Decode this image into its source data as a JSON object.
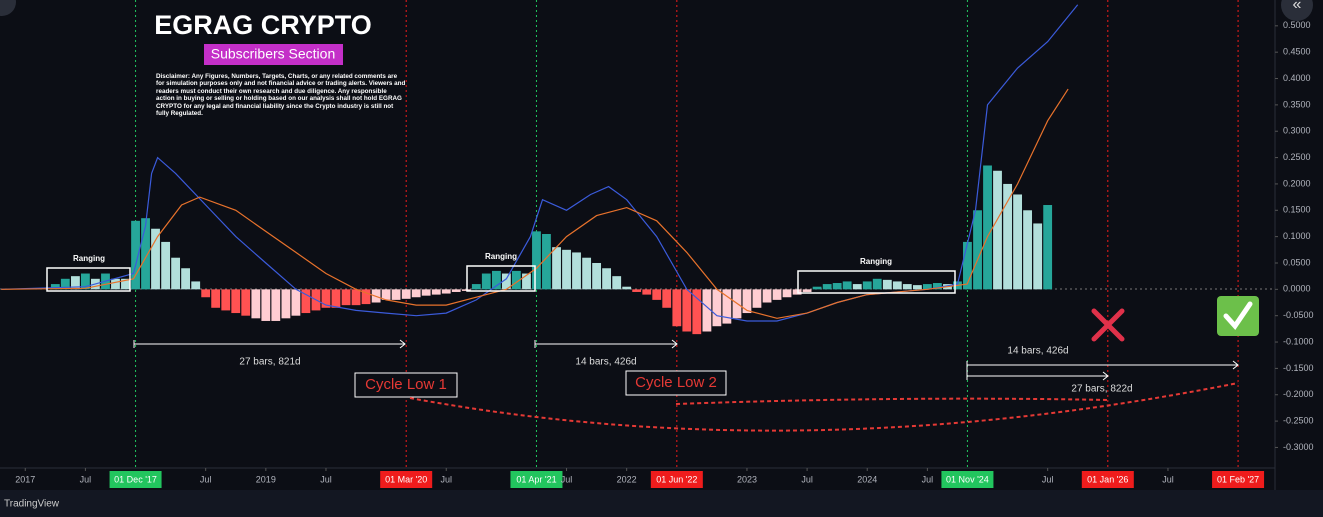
{
  "header": {
    "title": "EGRAG CRYPTO",
    "subtitle": "Subscribers Section",
    "disclaimer": "Disclaimer: Any Figures, Numbers, Targets, Charts, or any related comments are for simulation purposes only and not financial advice or trading alerts. Viewers and readers must conduct their own research and due diligence. Any responsible action in buying or selling or holding based on our analysis shall not hold EGRAG CRYPTO for any legal and financial liability since the Crypto industry is still not fully Regulated."
  },
  "footer": {
    "source": "TradingView"
  },
  "chart_data": {
    "type": "bar",
    "xlim": [
      2016.79,
      2027.39
    ],
    "ylim": [
      -0.339,
      0.549
    ],
    "x": [
      2017.25,
      2017.333,
      2017.417,
      2017.5,
      2017.583,
      2017.667,
      2017.75,
      2017.833,
      2017.917,
      2018,
      2018.083,
      2018.167,
      2018.25,
      2018.333,
      2018.417,
      2018.5,
      2018.583,
      2018.667,
      2018.75,
      2018.833,
      2018.917,
      2019,
      2019.083,
      2019.167,
      2019.25,
      2019.333,
      2019.417,
      2019.5,
      2019.583,
      2019.667,
      2019.75,
      2019.833,
      2019.917,
      2020,
      2020.083,
      2020.167,
      2020.25,
      2020.333,
      2020.417,
      2020.5,
      2020.583,
      2020.667,
      2020.75,
      2020.833,
      2020.917,
      2021,
      2021.083,
      2021.167,
      2021.25,
      2021.333,
      2021.417,
      2021.5,
      2021.583,
      2021.667,
      2021.75,
      2021.833,
      2021.917,
      2022,
      2022.083,
      2022.167,
      2022.25,
      2022.333,
      2022.417,
      2022.5,
      2022.583,
      2022.667,
      2022.75,
      2022.833,
      2022.917,
      2023,
      2023.083,
      2023.167,
      2023.25,
      2023.333,
      2023.417,
      2023.5,
      2023.583,
      2023.667,
      2023.75,
      2023.833,
      2023.917,
      2024,
      2024.083,
      2024.167,
      2024.25,
      2024.333,
      2024.417,
      2024.5,
      2024.583,
      2024.667,
      2024.75,
      2024.833,
      2024.917,
      2025,
      2025.083,
      2025.167,
      2025.25,
      2025.333,
      2025.417,
      2025.5
    ],
    "values": [
      0.01,
      0.02,
      0.025,
      0.03,
      0.02,
      0.03,
      0.02,
      0.02,
      0.13,
      0.135,
      0.115,
      0.09,
      0.06,
      0.04,
      0.015,
      -0.015,
      -0.035,
      -0.04,
      -0.045,
      -0.05,
      -0.055,
      -0.06,
      -0.06,
      -0.055,
      -0.05,
      -0.045,
      -0.04,
      -0.035,
      -0.035,
      -0.03,
      -0.03,
      -0.028,
      -0.025,
      -0.02,
      -0.02,
      -0.018,
      -0.015,
      -0.012,
      -0.01,
      -0.008,
      -0.005,
      -0.003,
      0.01,
      0.03,
      0.035,
      0.03,
      0.035,
      0.03,
      0.11,
      0.105,
      0.08,
      0.075,
      0.07,
      0.06,
      0.05,
      0.04,
      0.025,
      0.005,
      -0.005,
      -0.01,
      -0.02,
      -0.035,
      -0.07,
      -0.08,
      -0.085,
      -0.08,
      -0.07,
      -0.065,
      -0.055,
      -0.045,
      -0.035,
      -0.025,
      -0.02,
      -0.015,
      -0.01,
      -0.005,
      0.005,
      0.01,
      0.012,
      0.015,
      0.01,
      0.015,
      0.02,
      0.018,
      0.015,
      0.01,
      0.008,
      0.01,
      0.012,
      0.01,
      0.015,
      0.09,
      0.15,
      0.235,
      0.225,
      0.2,
      0.18,
      0.15,
      0.125,
      0.16
    ],
    "colors": [
      "#26a69a",
      "#26a69a",
      "#b2dfdb",
      "#26a69a",
      "#b2dfdb",
      "#26a69a",
      "#b2dfdb",
      "#b2dfdb",
      "#26a69a",
      "#26a69a",
      "#b2dfdb",
      "#b2dfdb",
      "#b2dfdb",
      "#b2dfdb",
      "#b2dfdb",
      "#ff5252",
      "#ff5252",
      "#ff5252",
      "#ff5252",
      "#ff5252",
      "#ffcdd2",
      "#ffcdd2",
      "#ffcdd2",
      "#ffcdd2",
      "#ffcdd2",
      "#ff5252",
      "#ff5252",
      "#ff5252",
      "#ff5252",
      "#ff5252",
      "#ff5252",
      "#ff5252",
      "#ffcdd2",
      "#ffcdd2",
      "#ffcdd2",
      "#ffcdd2",
      "#ffcdd2",
      "#ffcdd2",
      "#ffcdd2",
      "#ffcdd2",
      "#ffcdd2",
      "#ffcdd2",
      "#26a69a",
      "#26a69a",
      "#26a69a",
      "#b2dfdb",
      "#26a69a",
      "#b2dfdb",
      "#26a69a",
      "#26a69a",
      "#b2dfdb",
      "#b2dfdb",
      "#b2dfdb",
      "#b2dfdb",
      "#b2dfdb",
      "#b2dfdb",
      "#b2dfdb",
      "#b2dfdb",
      "#ff5252",
      "#ff5252",
      "#ff5252",
      "#ff5252",
      "#ff5252",
      "#ff5252",
      "#ff5252",
      "#ffcdd2",
      "#ffcdd2",
      "#ffcdd2",
      "#ffcdd2",
      "#ffcdd2",
      "#ffcdd2",
      "#ffcdd2",
      "#ffcdd2",
      "#ffcdd2",
      "#ffcdd2",
      "#ffcdd2",
      "#26a69a",
      "#26a69a",
      "#26a69a",
      "#26a69a",
      "#b2dfdb",
      "#26a69a",
      "#26a69a",
      "#b2dfdb",
      "#b2dfdb",
      "#b2dfdb",
      "#b2dfdb",
      "#26a69a",
      "#26a69a",
      "#b2dfdb",
      "#26a69a",
      "#26a69a",
      "#26a69a",
      "#26a69a",
      "#b2dfdb",
      "#b2dfdb",
      "#b2dfdb",
      "#b2dfdb",
      "#b2dfdb",
      "#26a69a"
    ],
    "overlays": [
      {
        "type": "line",
        "color": "#3b5bdb",
        "x": [
          2016.8,
          2017.5,
          2017.9,
          2018.0,
          2018.05,
          2018.1,
          2018.25,
          2018.5,
          2018.75,
          2019.0,
          2019.25,
          2019.5,
          2019.75,
          2020.0,
          2020.25,
          2020.5,
          2020.75,
          2021.0,
          2021.2,
          2021.3,
          2021.5,
          2021.7,
          2021.85,
          2022.0,
          2022.25,
          2022.5,
          2022.75,
          2023.0,
          2023.25,
          2023.5,
          2023.75,
          2024.0,
          2024.5,
          2024.75,
          2024.9,
          2025.0,
          2025.25,
          2025.5,
          2025.75
        ],
        "values": [
          0,
          0.005,
          0.03,
          0.12,
          0.22,
          0.25,
          0.22,
          0.16,
          0.1,
          0.05,
          0.0,
          -0.03,
          -0.04,
          -0.045,
          -0.05,
          -0.045,
          -0.02,
          0.02,
          0.1,
          0.17,
          0.15,
          0.18,
          0.195,
          0.17,
          0.1,
          0.0,
          -0.05,
          -0.06,
          -0.06,
          -0.045,
          -0.025,
          -0.01,
          0.0,
          0.01,
          0.15,
          0.35,
          0.42,
          0.47,
          0.54
        ]
      },
      {
        "type": "line",
        "color": "#e8722c",
        "x": [
          2016.8,
          2017.5,
          2017.9,
          2018.1,
          2018.3,
          2018.45,
          2018.75,
          2019.0,
          2019.25,
          2019.5,
          2019.75,
          2020.0,
          2020.25,
          2020.5,
          2020.75,
          2021.0,
          2021.25,
          2021.5,
          2021.75,
          2022.0,
          2022.25,
          2022.5,
          2022.75,
          2023.0,
          2023.25,
          2023.5,
          2023.75,
          2024.0,
          2024.5,
          2024.83,
          2025.0,
          2025.25,
          2025.5,
          2025.67
        ],
        "values": [
          0,
          0.002,
          0.02,
          0.1,
          0.16,
          0.175,
          0.15,
          0.11,
          0.07,
          0.03,
          0.0,
          -0.02,
          -0.03,
          -0.03,
          -0.015,
          0.0,
          0.04,
          0.1,
          0.14,
          0.155,
          0.13,
          0.07,
          0.0,
          -0.04,
          -0.055,
          -0.045,
          -0.025,
          -0.01,
          0.0,
          0.01,
          0.1,
          0.2,
          0.32,
          0.38
        ]
      }
    ],
    "yticks": [
      {
        "value": 0.5,
        "label": "0.5000"
      },
      {
        "value": 0.45,
        "label": "0.4500"
      },
      {
        "value": 0.4,
        "label": "0.4000"
      },
      {
        "value": 0.35,
        "label": "0.3500"
      },
      {
        "value": 0.3,
        "label": "0.3000"
      },
      {
        "value": 0.25,
        "label": "0.2500"
      },
      {
        "value": 0.2,
        "label": "0.2000"
      },
      {
        "value": 0.15,
        "label": "0.1500"
      },
      {
        "value": 0.1,
        "label": "0.1000"
      },
      {
        "value": 0.05,
        "label": "0.0500"
      },
      {
        "value": 0,
        "label": "0.0000"
      },
      {
        "value": -0.05,
        "label": "-0.0500"
      },
      {
        "value": -0.1,
        "label": "-0.1000"
      },
      {
        "value": -0.15,
        "label": "-0.1500"
      },
      {
        "value": -0.2,
        "label": "-0.2000"
      },
      {
        "value": -0.25,
        "label": "-0.2500"
      },
      {
        "value": -0.3,
        "label": "-0.3000"
      }
    ],
    "xticks": [
      2017,
      {
        "value": 2017.5,
        "label": "Jul"
      },
      {
        "value": 2017.917,
        "label": "01 Dec '17",
        "color": "#22c55e"
      },
      {
        "value": 2018.5,
        "label": "Jul"
      },
      2019,
      {
        "value": 2019.5,
        "label": "Jul"
      },
      {
        "value": 2020.167,
        "label": "01 Mar '20",
        "color": "#ef1c1c"
      },
      {
        "value": 2020.5,
        "label": "Jul"
      },
      {
        "value": 2021.25,
        "label": "01 Apr '21",
        "color": "#22c55e"
      },
      {
        "value": 2021.5,
        "label": "Jul"
      },
      2022,
      {
        "value": 2022.417,
        "label": "01 Jun '22",
        "color": "#ef1c1c"
      },
      2023,
      {
        "value": 2023.5,
        "label": "Jul"
      },
      2024,
      {
        "value": 2024.5,
        "label": "Jul"
      },
      {
        "value": 2024.833,
        "label": "01 Nov '24",
        "color": "#22c55e"
      },
      {
        "value": 2025.5,
        "label": "Jul"
      },
      {
        "value": 2026,
        "label": "01 Jan '26",
        "color": "#ef1c1c"
      },
      {
        "value": 2026.5,
        "label": "Jul"
      },
      {
        "value": 2027.083,
        "label": "01 Feb '27",
        "color": "#ef1c1c"
      }
    ],
    "annotations": [
      "Ranging",
      "Ranging",
      "Ranging",
      "27 bars, 821d",
      "14 bars, 426d",
      "Cycle Low 1",
      "Cycle Low 2",
      "14 bars, 426d",
      "27 bars, 822d"
    ]
  }
}
